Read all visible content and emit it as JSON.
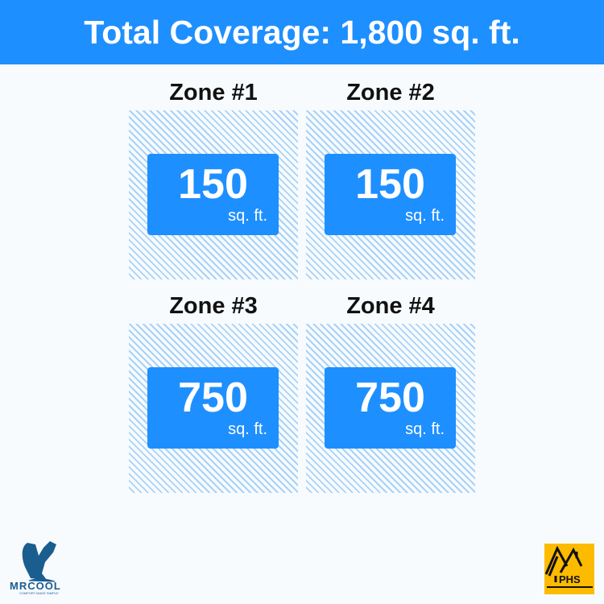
{
  "header": {
    "title": "Total Coverage: 1,800 sq. ft."
  },
  "zones": [
    {
      "title": "Zone #1",
      "value": "150",
      "unit": "sq. ft."
    },
    {
      "title": "Zone #2",
      "value": "150",
      "unit": "sq. ft."
    },
    {
      "title": "Zone #3",
      "value": "750",
      "unit": "sq. ft."
    },
    {
      "title": "Zone #4",
      "value": "750",
      "unit": "sq. ft."
    }
  ],
  "logos": {
    "left": {
      "name": "MRCOOL",
      "tagline": "COMFORT MADE SIMPLE"
    },
    "right": {
      "name": "PHS"
    }
  },
  "colors": {
    "accent": "#1e8ffe",
    "hatch": "#a9d2f6",
    "phs": "#fdbb00",
    "mrcool": "#1a5d8f"
  }
}
